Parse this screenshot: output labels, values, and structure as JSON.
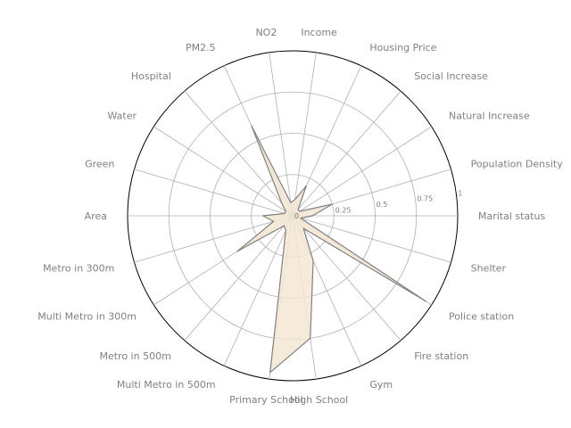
{
  "chart_data": {
    "type": "radar",
    "title": "",
    "range": [
      0,
      1
    ],
    "ticks": [
      "0",
      "0.25",
      "0.5",
      "0.75",
      "1"
    ],
    "tick_values": [
      0,
      0.25,
      0.5,
      0.75,
      1.0
    ],
    "grid": true,
    "colors": {
      "fill": "#f5e6d3",
      "line": "#808080",
      "grid": "#b0b0b0",
      "frame": "#000000"
    },
    "categories": [
      "Marital status",
      "Population Density",
      "Natural Increase",
      "Social Increase",
      "Housing Price",
      "Income",
      "NO2",
      "PM2.5",
      "Hospital",
      "Water",
      "Green",
      "Area",
      "Metro in 300m",
      "Multi Metro in 300m",
      "Metro in 500m",
      "Multi Metro in 500m",
      "Primary School",
      "High School",
      "Gym",
      "Fire station",
      "Police station",
      "Shelter"
    ],
    "values": [
      0.12,
      0.25,
      0.05,
      0.05,
      0.2,
      0.1,
      0.08,
      0.6,
      0.1,
      0.05,
      0.05,
      0.18,
      0.12,
      0.4,
      0.08,
      0.1,
      0.96,
      0.75,
      0.3,
      0.1,
      0.96,
      0.05
    ]
  }
}
